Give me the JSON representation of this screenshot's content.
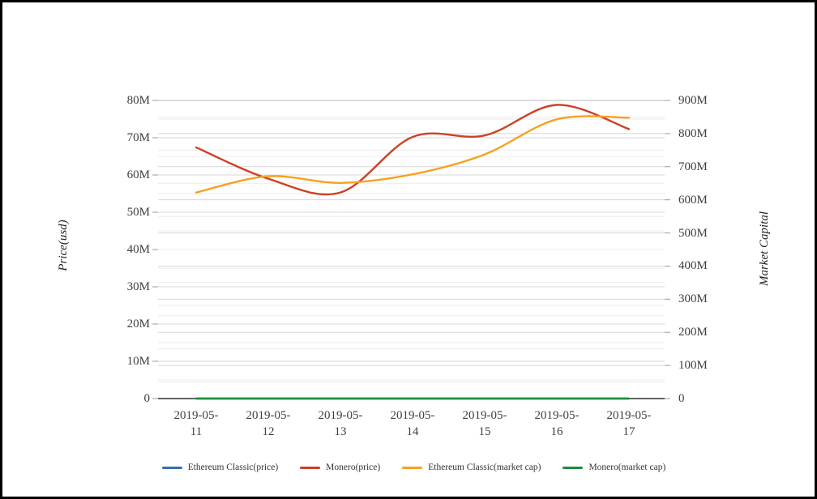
{
  "chart_data": {
    "type": "line",
    "title": "",
    "categories": [
      "2019-05-11",
      "2019-05-12",
      "2019-05-13",
      "2019-05-14",
      "2019-05-15",
      "2019-05-16",
      "2019-05-17"
    ],
    "left_axis": {
      "title": "Price(usd)",
      "min": 0,
      "max": 80,
      "major_step": 10,
      "minor_step": 5,
      "tick_labels": [
        "0",
        "10M",
        "20M",
        "30M",
        "40M",
        "50M",
        "60M",
        "70M",
        "80M"
      ]
    },
    "right_axis": {
      "title": "Market Capital",
      "min": 0,
      "max": 900,
      "major_step": 100,
      "minor_step": 50,
      "tick_labels": [
        "0",
        "100M",
        "200M",
        "300M",
        "400M",
        "500M",
        "600M",
        "700M",
        "800M",
        "900M"
      ]
    },
    "series": [
      {
        "name": "Ethereum Classic(price)",
        "axis": "left",
        "color": "#3a6eb5",
        "values": [
          0,
          0,
          0,
          0,
          0,
          0,
          0
        ]
      },
      {
        "name": "Monero(price)",
        "axis": "left",
        "color": "#cc4125",
        "values": [
          67.4,
          59.0,
          55.3,
          70.2,
          70.6,
          78.8,
          72.3
        ]
      },
      {
        "name": "Ethereum Classic(market cap)",
        "axis": "right",
        "color": "#f7a120",
        "values": [
          622,
          671,
          651,
          677,
          737,
          843,
          848
        ]
      },
      {
        "name": "Monero(market cap)",
        "axis": "right",
        "color": "#1e8c3b",
        "values": [
          0,
          0,
          0,
          0,
          0,
          0,
          0
        ]
      }
    ],
    "values_unit": "millions (M)",
    "grid": true,
    "legend_position": "bottom",
    "note": "Ethereum Classic(price) and Monero(market cap) render flat along the 0 baseline at this scale"
  },
  "colors": {
    "grid_major": "#d7d7d7",
    "grid_minor": "#ebebeb",
    "grid_top": "#b9b9b9",
    "axis_line": "#2e2e2e",
    "tick_mark": "#9b9b9b",
    "tick_text": "#3e3e3e"
  }
}
